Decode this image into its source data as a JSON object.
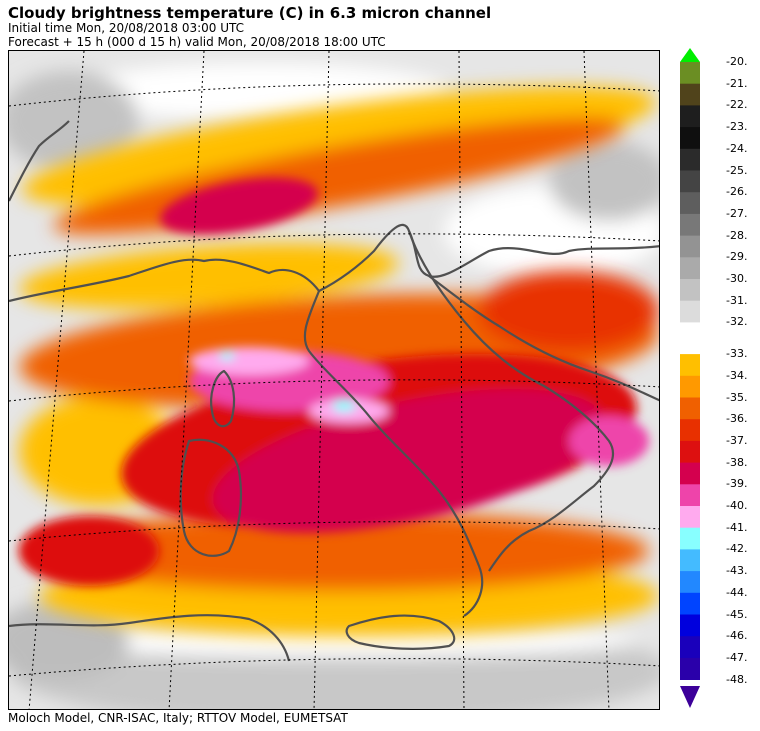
{
  "header": {
    "title": "Cloudy brightness temperature (C) in    6.3 micron channel",
    "initial_time": "Initial time  Mon, 20/08/2018  03:00 UTC",
    "forecast": "Forecast  +  15 h  (000 d 15 h)  valid Mon, 20/08/2018 18:00 UTC"
  },
  "footer": {
    "credits": "Moloch Model, CNR-ISAC, Italy; RTTOV Model, EUMETSAT"
  },
  "legend": {
    "arrow_up_color": "#00ee00",
    "arrow_down_color": "#3c0099",
    "entries": [
      {
        "label": "-20.",
        "color": "#6b8e23"
      },
      {
        "label": "-21.",
        "color": "#50431b"
      },
      {
        "label": "-22.",
        "color": "#1e1e1e"
      },
      {
        "label": "-23.",
        "color": "#0f0f0f"
      },
      {
        "label": "-24.",
        "color": "#2b2b2b"
      },
      {
        "label": "-25.",
        "color": "#444444"
      },
      {
        "label": "-26.",
        "color": "#5e5e5e"
      },
      {
        "label": "-27.",
        "color": "#787878"
      },
      {
        "label": "-28.",
        "color": "#939393"
      },
      {
        "label": "-29.",
        "color": "#aaaaaa"
      },
      {
        "label": "-30.",
        "color": "#c2c2c2"
      },
      {
        "label": "-31.",
        "color": "#dcdcdc"
      },
      {
        "label": "-32.",
        "color": "#ffffff"
      },
      {
        "label": "-33.",
        "color": "#ffbf00"
      },
      {
        "label": "-34.",
        "color": "#ff9900"
      },
      {
        "label": "-35.",
        "color": "#f06000"
      },
      {
        "label": "-36.",
        "color": "#e83000"
      },
      {
        "label": "-37.",
        "color": "#dd1010"
      },
      {
        "label": "-38.",
        "color": "#d4004e"
      },
      {
        "label": "-39.",
        "color": "#ee44aa"
      },
      {
        "label": "-40.",
        "color": "#ffaaee"
      },
      {
        "label": "-41.",
        "color": "#88ffff"
      },
      {
        "label": "-42.",
        "color": "#44bbff"
      },
      {
        "label": "-43.",
        "color": "#2288ff"
      },
      {
        "label": "-44.",
        "color": "#0044ff"
      },
      {
        "label": "-45.",
        "color": "#0000dd"
      },
      {
        "label": "-46.",
        "color": "#1a00bb"
      },
      {
        "label": "-47.",
        "color": "#2a00aa"
      },
      {
        "label": "-48.",
        "color": ""
      }
    ]
  },
  "map": {
    "colors": {
      "background": "#e6e6e6",
      "coastline": "#505050",
      "grid": "#000000"
    }
  }
}
